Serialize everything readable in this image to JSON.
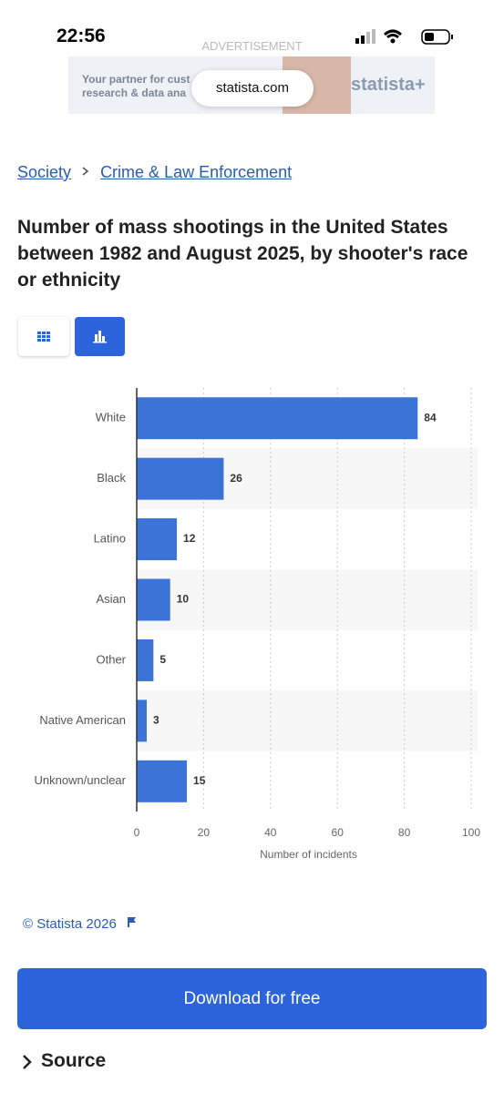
{
  "status_bar": {
    "time": "22:56"
  },
  "ad": {
    "label": "ADVERTISEMENT",
    "line1": "Your partner for cust",
    "line2": "research & data ana",
    "url": "statista.com",
    "brand": "statista+"
  },
  "breadcrumb": [
    "Society",
    "Crime & Law Enforcement"
  ],
  "chart_data": {
    "type": "bar",
    "orientation": "horizontal",
    "title": "Number of mass shootings in the United States between 1982 and August 2025, by shooter's race or ethnicity",
    "categories": [
      "White",
      "Black",
      "Latino",
      "Asian",
      "Other",
      "Native American",
      "Unknown/unclear"
    ],
    "values": [
      84,
      26,
      12,
      10,
      5,
      3,
      15
    ],
    "color": "#3b73d6",
    "xlim": [
      0,
      100
    ],
    "xticks": [
      0,
      20,
      40,
      60,
      80,
      100
    ],
    "xlabel": "Number of incidents",
    "grid": true
  },
  "copyright": "© Statista 2026",
  "button": "Download for free",
  "source": "Source"
}
